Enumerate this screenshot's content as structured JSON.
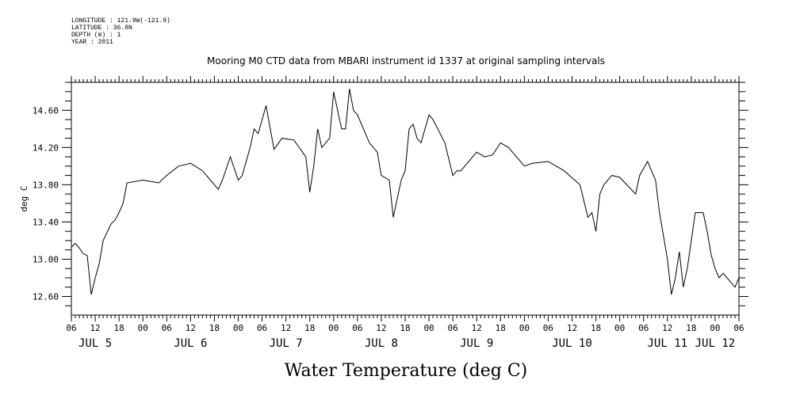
{
  "header": {
    "longitude": "LONGITUDE : 121.9W(-121.9)",
    "latitude": "LATITUDE : 36.8N",
    "depth": "DEPTH (m) : 1",
    "year": "YEAR : 2011"
  },
  "chart_data": {
    "type": "line",
    "title": "Mooring M0 CTD data from MBARI instrument id 1337 at original sampling intervals",
    "xlabel": "Water Temperature (deg C)",
    "ylabel": "deg C",
    "xlim": [
      "2011-07-05T06:00",
      "2011-07-12T06:00"
    ],
    "ylim": [
      12.4,
      14.9
    ],
    "yticks": [
      "12.60",
      "13.00",
      "13.40",
      "13.80",
      "14.20",
      "14.60"
    ],
    "hour_tick_labels": [
      "06",
      "12",
      "18",
      "00",
      "06",
      "12",
      "18",
      "00",
      "06",
      "12",
      "18",
      "00",
      "06",
      "12",
      "18",
      "00",
      "06",
      "12",
      "18",
      "00",
      "06",
      "12",
      "18",
      "00",
      "06",
      "12",
      "18",
      "00",
      "06"
    ],
    "day_labels": [
      "JUL 5",
      "JUL 6",
      "JUL 7",
      "JUL 8",
      "JUL 9",
      "JUL 10",
      "JUL 11",
      "JUL 12"
    ],
    "grid": false,
    "series": [
      {
        "x": [
          "2011-07-05T06:00",
          "2011-07-05T07:00",
          "2011-07-05T08:00",
          "2011-07-05T09:00",
          "2011-07-05T10:00",
          "2011-07-05T11:00",
          "2011-07-05T12:00",
          "2011-07-05T13:00",
          "2011-07-05T14:00",
          "2011-07-05T16:00",
          "2011-07-05T17:00",
          "2011-07-05T18:00",
          "2011-07-05T19:00",
          "2011-07-05T20:00",
          "2011-07-06T00:00",
          "2011-07-06T04:00",
          "2011-07-06T06:00",
          "2011-07-06T09:00",
          "2011-07-06T12:00",
          "2011-07-06T15:00",
          "2011-07-06T17:00",
          "2011-07-06T18:00",
          "2011-07-06T19:00",
          "2011-07-06T20:00",
          "2011-07-06T22:00",
          "2011-07-07T00:00",
          "2011-07-07T01:00",
          "2011-07-07T03:00",
          "2011-07-07T04:00",
          "2011-07-07T05:00",
          "2011-07-07T07:00",
          "2011-07-07T09:00",
          "2011-07-07T11:00",
          "2011-07-07T14:00",
          "2011-07-07T17:00",
          "2011-07-07T18:00",
          "2011-07-07T19:00",
          "2011-07-07T20:00",
          "2011-07-07T21:00",
          "2011-07-07T22:00",
          "2011-07-07T23:00",
          "2011-07-08T00:00",
          "2011-07-08T02:00",
          "2011-07-08T03:00",
          "2011-07-08T04:00",
          "2011-07-08T05:00",
          "2011-07-08T06:00",
          "2011-07-08T09:00",
          "2011-07-08T11:00",
          "2011-07-08T12:00",
          "2011-07-08T14:00",
          "2011-07-08T15:00",
          "2011-07-08T17:00",
          "2011-07-08T18:00",
          "2011-07-08T19:00",
          "2011-07-08T20:00",
          "2011-07-08T21:00",
          "2011-07-08T22:00",
          "2011-07-09T00:00",
          "2011-07-09T01:00",
          "2011-07-09T04:00",
          "2011-07-09T06:00",
          "2011-07-09T07:00",
          "2011-07-09T08:00",
          "2011-07-09T12:00",
          "2011-07-09T14:00",
          "2011-07-09T16:00",
          "2011-07-09T18:00",
          "2011-07-09T20:00",
          "2011-07-10T00:00",
          "2011-07-10T02:00",
          "2011-07-10T06:00",
          "2011-07-10T10:00",
          "2011-07-10T14:00",
          "2011-07-10T16:00",
          "2011-07-10T17:00",
          "2011-07-10T18:00",
          "2011-07-10T19:00",
          "2011-07-10T20:00",
          "2011-07-10T22:00",
          "2011-07-11T00:00",
          "2011-07-11T04:00",
          "2011-07-11T05:00",
          "2011-07-11T07:00",
          "2011-07-11T09:00",
          "2011-07-11T10:00",
          "2011-07-11T12:00",
          "2011-07-11T13:00",
          "2011-07-11T14:00",
          "2011-07-11T15:00",
          "2011-07-11T16:00",
          "2011-07-11T17:00",
          "2011-07-11T18:00",
          "2011-07-11T19:00",
          "2011-07-11T21:00",
          "2011-07-11T22:00",
          "2011-07-11T23:00",
          "2011-07-12T00:00",
          "2011-07-12T01:00",
          "2011-07-12T02:00",
          "2011-07-12T03:00",
          "2011-07-12T04:00",
          "2011-07-12T05:00",
          "2011-07-12T06:00"
        ],
        "y": [
          13.13,
          13.17,
          13.12,
          13.06,
          13.04,
          12.62,
          12.8,
          12.95,
          13.2,
          13.38,
          13.42,
          13.5,
          13.6,
          13.82,
          13.85,
          13.82,
          13.9,
          14.0,
          14.03,
          13.95,
          13.85,
          13.8,
          13.75,
          13.85,
          14.1,
          13.85,
          13.9,
          14.2,
          14.4,
          14.35,
          14.65,
          14.18,
          14.3,
          14.28,
          14.1,
          13.72,
          14.0,
          14.4,
          14.2,
          14.25,
          14.3,
          14.8,
          14.4,
          14.4,
          14.83,
          14.6,
          14.55,
          14.25,
          14.15,
          13.9,
          13.85,
          13.45,
          13.85,
          13.95,
          14.4,
          14.45,
          14.3,
          14.25,
          14.55,
          14.5,
          14.25,
          13.9,
          13.95,
          13.95,
          14.15,
          14.1,
          14.12,
          14.25,
          14.2,
          14.0,
          14.03,
          14.05,
          13.95,
          13.8,
          13.45,
          13.5,
          13.3,
          13.7,
          13.8,
          13.9,
          13.88,
          13.7,
          13.9,
          14.05,
          13.85,
          13.5,
          13.0,
          12.62,
          12.8,
          13.08,
          12.7,
          12.9,
          13.2,
          13.5,
          13.5,
          13.3,
          13.05,
          12.9,
          12.8,
          12.85,
          12.8,
          12.75,
          12.7,
          12.8
        ]
      }
    ]
  }
}
